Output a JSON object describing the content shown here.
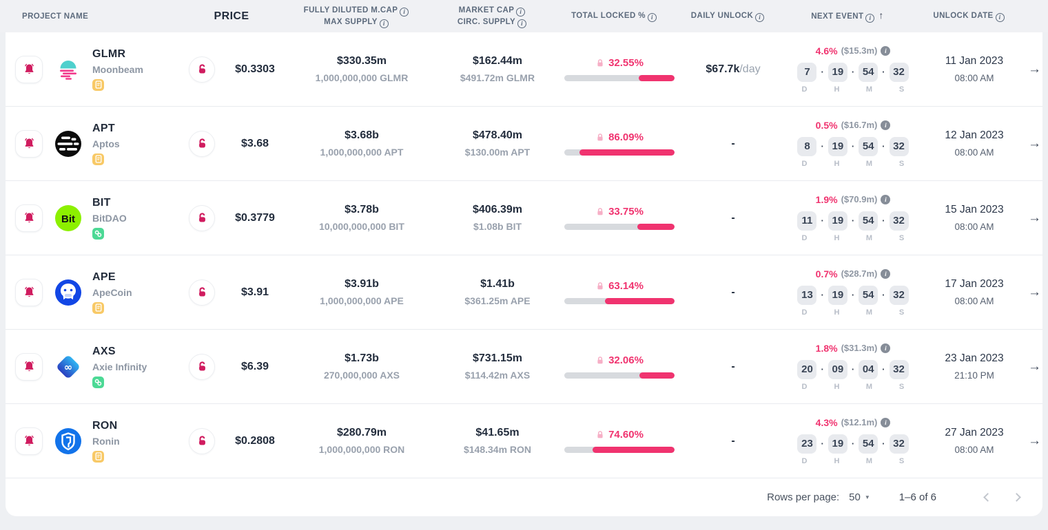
{
  "colors": {
    "accent_pink": "#f0336f",
    "crimson": "#d01c5f",
    "light_pink_lock": "#f6afc6",
    "badge_amber": "#f8c966",
    "badge_green": "#4cd995",
    "header_bg": "#f0f1f4",
    "countdown_box_bg": "#e8eaee"
  },
  "header": {
    "project": "PROJECT NAME",
    "price": "PRICE",
    "fdv_line1": "FULLY DILUTED M.CAP",
    "fdv_line2": "MAX SUPPLY",
    "mcap_line1": "MARKET CAP",
    "mcap_line2": "CIRC. SUPPLY",
    "locked": "TOTAL LOCKED %",
    "daily": "DAILY UNLOCK",
    "next_event": "NEXT EVENT",
    "unlock_date": "UNLOCK DATE",
    "sort_arrow": "↑",
    "info_glyph": "i"
  },
  "countdown_labels": {
    "d": "D",
    "h": "H",
    "m": "M",
    "s": "S",
    "dot": "·"
  },
  "rows": [
    {
      "symbol": "GLMR",
      "name": "Moonbeam",
      "logo": "moonbeam",
      "badge": "doc",
      "price": "$0.3303",
      "fdv": "$330.35m",
      "max_supply": "1,000,000,000 GLMR",
      "mcap": "$162.44m",
      "circ_supply": "$491.72m GLMR",
      "locked_pct": "32.55%",
      "locked_value": 32.55,
      "daily_unlock": "$67.7k",
      "daily_suffix": "/day",
      "event_pct": "4.6%",
      "event_amount": "($15.3m)",
      "d": "7",
      "h": "19",
      "m": "54",
      "s": "32",
      "date": "11 Jan 2023",
      "time": "08:00 AM"
    },
    {
      "symbol": "APT",
      "name": "Aptos",
      "logo": "aptos",
      "badge": "doc",
      "price": "$3.68",
      "fdv": "$3.68b",
      "max_supply": "1,000,000,000 APT",
      "mcap": "$478.40m",
      "circ_supply": "$130.00m APT",
      "locked_pct": "86.09%",
      "locked_value": 86.09,
      "daily_unlock": "-",
      "daily_suffix": "",
      "event_pct": "0.5%",
      "event_amount": "($16.7m)",
      "d": "8",
      "h": "19",
      "m": "54",
      "s": "32",
      "date": "12 Jan 2023",
      "time": "08:00 AM"
    },
    {
      "symbol": "BIT",
      "name": "BitDAO",
      "logo": "bitdao",
      "badge": "link",
      "price": "$0.3779",
      "fdv": "$3.78b",
      "max_supply": "10,000,000,000 BIT",
      "mcap": "$406.39m",
      "circ_supply": "$1.08b BIT",
      "locked_pct": "33.75%",
      "locked_value": 33.75,
      "daily_unlock": "-",
      "daily_suffix": "",
      "event_pct": "1.9%",
      "event_amount": "($70.9m)",
      "d": "11",
      "h": "19",
      "m": "54",
      "s": "32",
      "date": "15 Jan 2023",
      "time": "08:00 AM"
    },
    {
      "symbol": "APE",
      "name": "ApeCoin",
      "logo": "apecoin",
      "badge": "doc",
      "price": "$3.91",
      "fdv": "$3.91b",
      "max_supply": "1,000,000,000 APE",
      "mcap": "$1.41b",
      "circ_supply": "$361.25m APE",
      "locked_pct": "63.14%",
      "locked_value": 63.14,
      "daily_unlock": "-",
      "daily_suffix": "",
      "event_pct": "0.7%",
      "event_amount": "($28.7m)",
      "d": "13",
      "h": "19",
      "m": "54",
      "s": "32",
      "date": "17 Jan 2023",
      "time": "08:00 AM"
    },
    {
      "symbol": "AXS",
      "name": "Axie Infinity",
      "logo": "axie",
      "badge": "link",
      "price": "$6.39",
      "fdv": "$1.73b",
      "max_supply": "270,000,000 AXS",
      "mcap": "$731.15m",
      "circ_supply": "$114.42m AXS",
      "locked_pct": "32.06%",
      "locked_value": 32.06,
      "daily_unlock": "-",
      "daily_suffix": "",
      "event_pct": "1.8%",
      "event_amount": "($31.3m)",
      "d": "20",
      "h": "09",
      "m": "04",
      "s": "32",
      "date": "23 Jan 2023",
      "time": "21:10 PM"
    },
    {
      "symbol": "RON",
      "name": "Ronin",
      "logo": "ronin",
      "badge": "doc",
      "price": "$0.2808",
      "fdv": "$280.79m",
      "max_supply": "1,000,000,000 RON",
      "mcap": "$41.65m",
      "circ_supply": "$148.34m RON",
      "locked_pct": "74.60%",
      "locked_value": 74.6,
      "daily_unlock": "-",
      "daily_suffix": "",
      "event_pct": "4.3%",
      "event_amount": "($12.1m)",
      "d": "23",
      "h": "19",
      "m": "54",
      "s": "32",
      "date": "27 Jan 2023",
      "time": "08:00 AM"
    }
  ],
  "footer": {
    "rows_per_page_label": "Rows per page:",
    "rows_per_page_value": "50",
    "range": "1–6 of 6"
  }
}
